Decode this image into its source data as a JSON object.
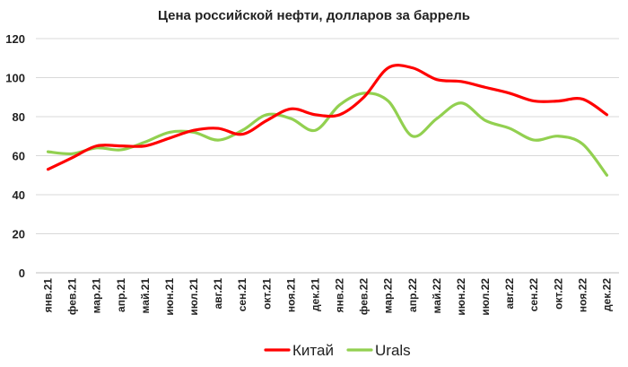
{
  "chart_data": {
    "type": "line",
    "title": "Цена российской нефти, долларов за баррель",
    "xlabel": "",
    "ylabel": "",
    "categories": [
      "янв.21",
      "фев.21",
      "мар.21",
      "апр.21",
      "май.21",
      "июн.21",
      "июл.21",
      "авг.21",
      "сен.21",
      "окт.21",
      "ноя.21",
      "дек.21",
      "янв.22",
      "фев.22",
      "мар.22",
      "апр.22",
      "май.22",
      "июн.22",
      "июл.22",
      "авг.22",
      "сен.22",
      "окт.22",
      "ноя.22",
      "дек.22"
    ],
    "ylim": [
      0,
      120
    ],
    "yticks": [
      "0",
      "20",
      "40",
      "60",
      "80",
      "100",
      "120"
    ],
    "grid": true,
    "legend_position": "bottom",
    "series": [
      {
        "name": "Китай",
        "color": "#ff0000",
        "values": [
          53,
          59,
          65,
          65,
          65,
          69,
          73,
          74,
          71,
          78,
          84,
          81,
          81,
          90,
          105,
          105,
          99,
          98,
          95,
          92,
          88,
          88,
          89,
          81
        ]
      },
      {
        "name": "Urals",
        "color": "#92d050",
        "values": [
          62,
          61,
          64,
          63,
          67,
          72,
          72,
          68,
          73,
          81,
          79,
          73,
          86,
          92,
          88,
          70,
          79,
          87,
          78,
          74,
          68,
          70,
          66,
          50
        ]
      }
    ]
  }
}
